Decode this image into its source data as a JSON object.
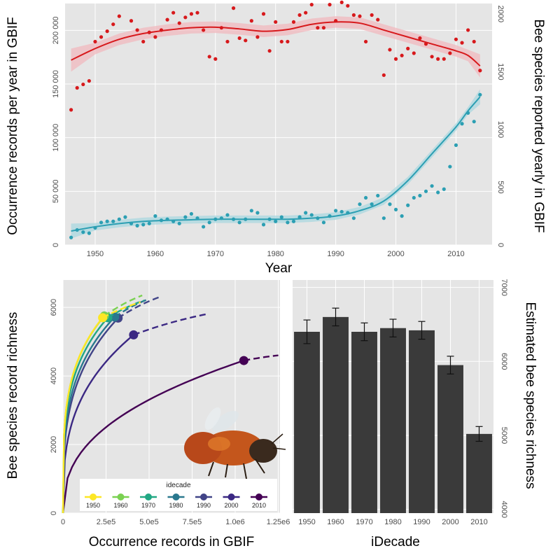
{
  "colors": {
    "panel_bg": "#e5e5e5",
    "grid": "#ffffff",
    "red": "#d7191c",
    "red_band": "#f0b8bd",
    "teal": "#2c9fb3",
    "teal_band": "#a9d7df",
    "bar": "#3a3a3a",
    "decades": [
      "#fde725",
      "#7ad151",
      "#22a884",
      "#2a788e",
      "#414487",
      "#3b2883",
      "#440154"
    ]
  },
  "chart_data": [
    {
      "type": "scatter",
      "x": [
        1946,
        1947,
        1948,
        1949,
        1950,
        1951,
        1952,
        1953,
        1954,
        1955,
        1956,
        1957,
        1958,
        1959,
        1960,
        1961,
        1962,
        1963,
        1964,
        1965,
        1966,
        1967,
        1968,
        1969,
        1970,
        1971,
        1972,
        1973,
        1974,
        1975,
        1976,
        1977,
        1978,
        1979,
        1980,
        1981,
        1982,
        1983,
        1984,
        1985,
        1986,
        1987,
        1988,
        1989,
        1990,
        1991,
        1992,
        1993,
        1994,
        1995,
        1996,
        1997,
        1998,
        1999,
        2000,
        2001,
        2002,
        2003,
        2004,
        2005,
        2006,
        2007,
        2008,
        2009,
        2010,
        2011,
        2012,
        2013,
        2014
      ],
      "xlabel": "Year",
      "ylabel": "Occurrence records per year in GBIF",
      "y2label": "Bee species reported yearly in GBIF",
      "xlim": [
        1945,
        2016
      ],
      "ylim": [
        0,
        225000
      ],
      "y2lim": [
        0,
        2090
      ],
      "x_ticks": [
        "1950",
        "1960",
        "1970",
        "1980",
        "1990",
        "2000",
        "2010"
      ],
      "y_ticks": [
        "0",
        "50 000",
        "100 000",
        "150 000",
        "200 000"
      ],
      "y2_ticks": [
        "0",
        "500",
        "1000",
        "1500",
        "2000"
      ],
      "series": [
        {
          "axis": "right",
          "values": [
            1170,
            1360,
            1390,
            1420,
            1760,
            1800,
            1850,
            1910,
            1980,
            2180,
            1940,
            1860,
            1760,
            1840,
            1800,
            1860,
            1950,
            2010,
            1920,
            1970,
            2000,
            2010,
            1860,
            1630,
            1610,
            1880,
            1760,
            2050,
            1790,
            1770,
            1940,
            1800,
            2000,
            1680,
            1930,
            1760,
            1760,
            1930,
            1990,
            2010,
            2080,
            1880,
            1880,
            2080,
            1940,
            2100,
            2070,
            1990,
            1980,
            1760,
            1990,
            1950,
            1470,
            1690,
            1610,
            1640,
            1700,
            1660,
            1790,
            1740,
            1630,
            1610,
            1610,
            1660,
            1780,
            1750,
            1860,
            1760,
            1510
          ],
          "trend": [
            1600,
            1700,
            1780,
            1830,
            1860,
            1880,
            1885,
            1870,
            1850,
            1865,
            1910,
            1930,
            1920,
            1860,
            1800,
            1740,
            1680,
            1640,
            1550
          ],
          "trend_years": [
            1946,
            1950,
            1954,
            1958,
            1962,
            1966,
            1970,
            1974,
            1978,
            1982,
            1986,
            1990,
            1994,
            1998,
            2002,
            2006,
            2010,
            2012,
            2014
          ]
        },
        {
          "axis": "left",
          "values": [
            7000,
            14000,
            12000,
            11000,
            16000,
            21000,
            22000,
            22000,
            24000,
            26000,
            20000,
            18000,
            19000,
            20000,
            27000,
            23000,
            24000,
            22000,
            20000,
            26000,
            29000,
            25000,
            17000,
            21000,
            24000,
            25000,
            28000,
            24000,
            21000,
            24000,
            32000,
            30000,
            19000,
            24000,
            22000,
            26000,
            21000,
            22000,
            26000,
            30000,
            28000,
            25000,
            21000,
            27000,
            32000,
            31000,
            30000,
            25000,
            38000,
            44000,
            38000,
            46000,
            25000,
            38000,
            33000,
            27000,
            37000,
            44000,
            46000,
            50000,
            55000,
            49000,
            52000,
            73000,
            93000,
            113000,
            123000,
            115000,
            140000
          ],
          "trend": [
            13000,
            17000,
            20000,
            22000,
            23000,
            23500,
            24000,
            24000,
            24000,
            24000,
            25000,
            27000,
            32000,
            41000,
            60000,
            85000,
            110000,
            125000,
            138000
          ],
          "trend_years": [
            1946,
            1950,
            1954,
            1958,
            1962,
            1966,
            1970,
            1974,
            1978,
            1982,
            1986,
            1990,
            1994,
            1998,
            2002,
            2006,
            2010,
            2012,
            2014
          ]
        }
      ]
    },
    {
      "type": "line",
      "xlabel": "Occurrence records in GBIF",
      "ylabel": "Bee species record richness",
      "xlim": [
        0,
        1260000
      ],
      "ylim": [
        0,
        6800
      ],
      "x_ticks": [
        "0",
        "2.5e5",
        "5.0e5",
        "7.5e5",
        "1.0e6",
        "1.25e6"
      ],
      "y_ticks": [
        "0",
        "2000",
        "4000",
        "6000"
      ],
      "legend": {
        "title": "idecade",
        "position": "bottom-left",
        "labels": [
          "1950",
          "1960",
          "1970",
          "1980",
          "1990",
          "2000",
          "2010"
        ]
      },
      "series": [
        {
          "name": "1950",
          "endpoint": [
            230000,
            5700
          ],
          "extrapolation_end": [
            450000,
            6150
          ],
          "shape": 0.25
        },
        {
          "name": "1960",
          "endpoint": [
            240000,
            5750
          ],
          "extrapolation_end": [
            460000,
            6350
          ],
          "shape": 0.25
        },
        {
          "name": "1970",
          "endpoint": [
            260000,
            5700
          ],
          "extrapolation_end": [
            470000,
            6200
          ],
          "shape": 0.26
        },
        {
          "name": "1980",
          "endpoint": [
            300000,
            5720
          ],
          "extrapolation_end": [
            500000,
            6250
          ],
          "shape": 0.28
        },
        {
          "name": "1990",
          "endpoint": [
            320000,
            5690
          ],
          "extrapolation_end": [
            560000,
            6300
          ],
          "shape": 0.3
        },
        {
          "name": "2000",
          "endpoint": [
            410000,
            5200
          ],
          "extrapolation_end": [
            830000,
            5800
          ],
          "shape": 0.33
        },
        {
          "name": "2010",
          "endpoint": [
            1050000,
            4450
          ],
          "extrapolation_end": [
            1250000,
            4600
          ],
          "shape": 0.4
        }
      ]
    },
    {
      "type": "bar",
      "categories": [
        "1950",
        "1960",
        "1970",
        "1980",
        "1990",
        "2000",
        "2010"
      ],
      "values": [
        6400,
        6600,
        6400,
        6450,
        6420,
        5950,
        5020
      ],
      "errors": [
        160,
        120,
        120,
        120,
        120,
        120,
        100
      ],
      "xlabel": "iDecade",
      "ylabel": "Estimated bee species richness",
      "ylim": [
        3950,
        7100
      ],
      "y_ticks": [
        "4000",
        "5000",
        "6000",
        "7000"
      ]
    }
  ]
}
